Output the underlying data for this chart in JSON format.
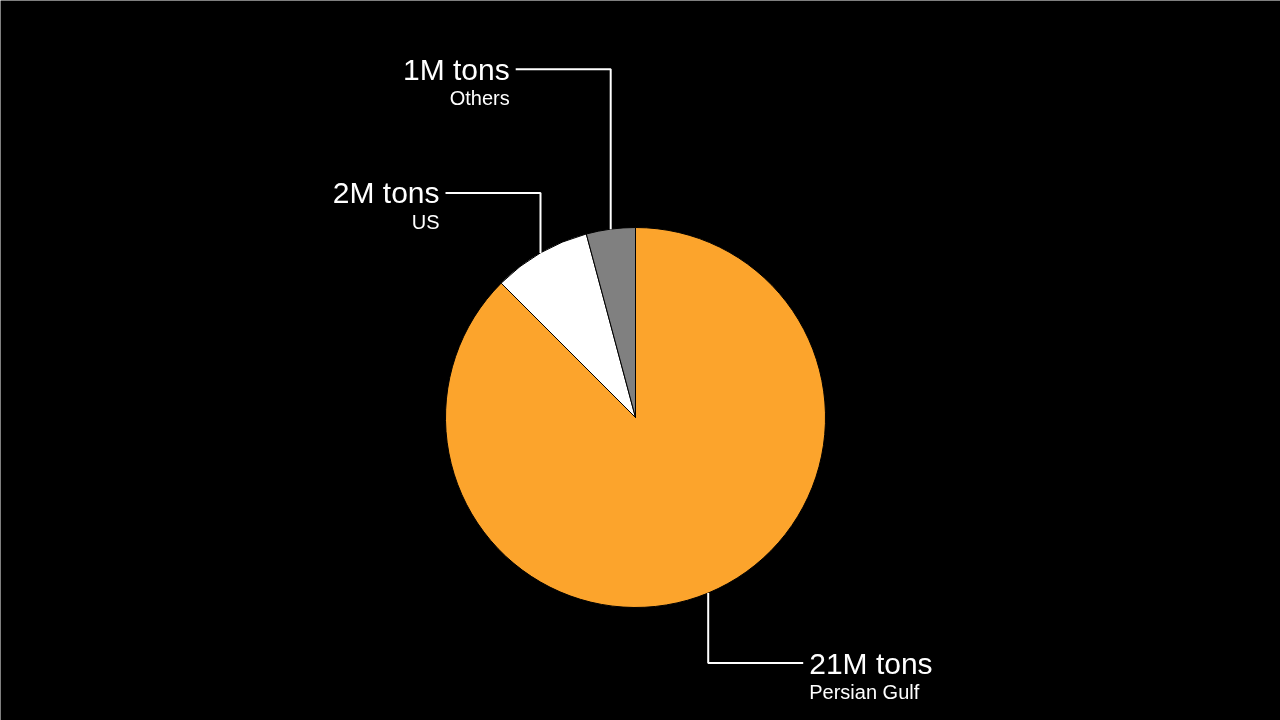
{
  "chart_data": {
    "type": "pie",
    "categories": [
      "Persian Gulf",
      "US",
      "Others"
    ],
    "values": [
      21,
      2,
      1
    ],
    "colors": [
      "#fca42c",
      "#ffffff",
      "#808080"
    ],
    "value_labels": [
      "21M tons",
      "2M tons",
      "1M tons"
    ]
  }
}
